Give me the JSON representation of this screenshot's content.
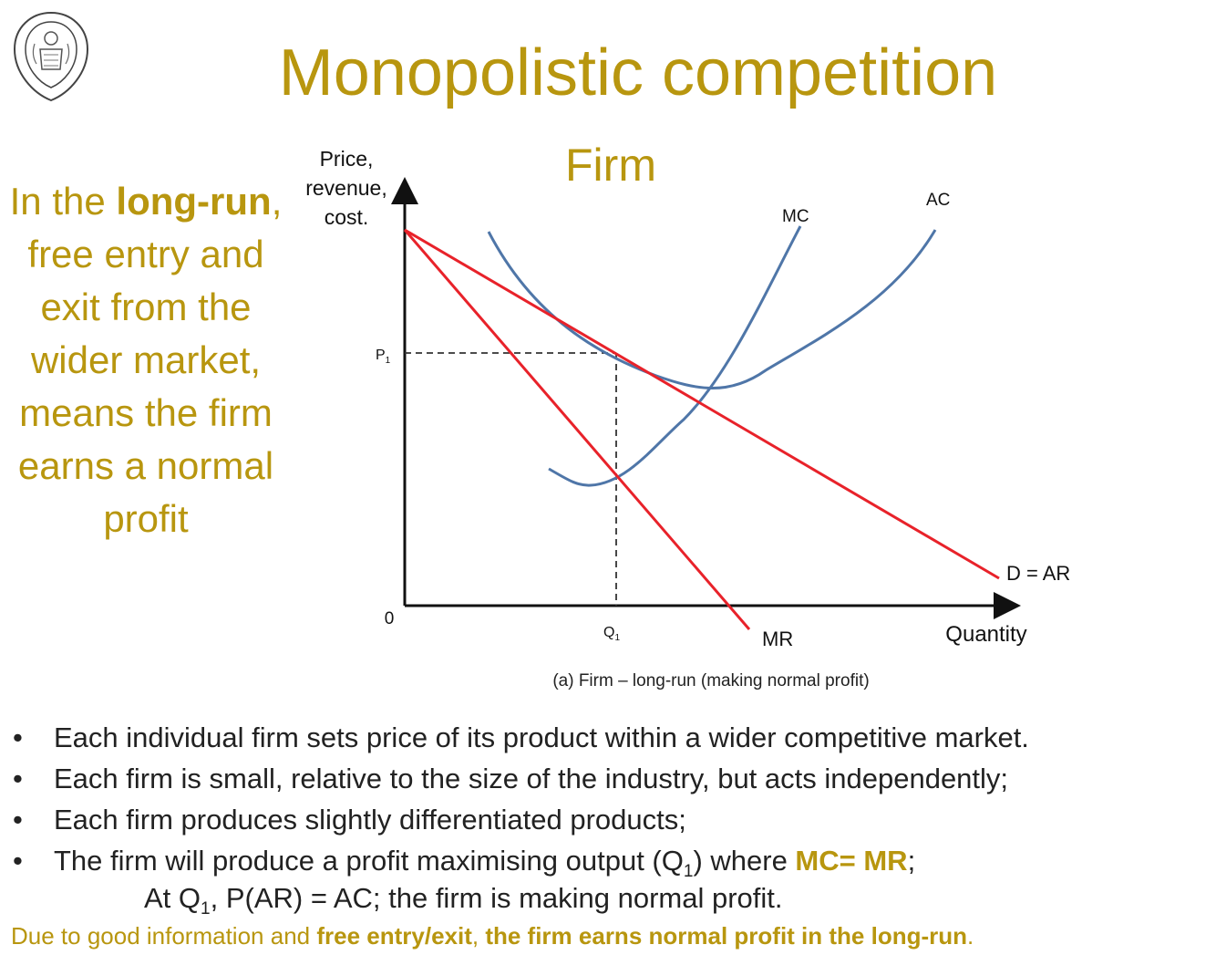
{
  "slide": {
    "title": "Monopolistic competition",
    "subtitle": "Firm",
    "side_text": {
      "p1": "In the ",
      "b1": "long-run",
      "p2": ", free entry and exit from the wider market, means the firm earns a normal profit"
    },
    "bullets": [
      {
        "text": "Each individual firm sets price of its product within a wider competitive market."
      },
      {
        "text": "Each firm is small, relative to the size of the industry, but acts independently;"
      },
      {
        "text": "Each firm produces slightly differentiated products;"
      },
      {
        "pre": "The firm will produce a profit maximising output (Q",
        "sub": "1",
        "mid": ") where ",
        "hl": "MC= MR",
        "post": ";"
      }
    ],
    "indent_line": {
      "pre": "At Q",
      "sub": "1",
      "post": ", P(AR) = AC; the firm is making normal profit."
    },
    "footer": {
      "p1": "Due to good information and ",
      "b1": "free entry/exit",
      "p2": ", ",
      "b2": "the firm earns normal profit in the long-run",
      "p3": "."
    }
  },
  "diagram": {
    "y_axis_label": [
      "Price,",
      "revenue,",
      "cost."
    ],
    "x_axis_label": "Quantity",
    "origin": "0",
    "p1_label": "P",
    "p1_sub": "1",
    "q1_label": "Q",
    "q1_sub": "1",
    "curves": {
      "mc": "MC",
      "ac": "AC",
      "demand": "D = AR",
      "mr": "MR"
    },
    "caption": "(a) Firm – long-run (making normal profit)",
    "colors": {
      "cost_curves": "#4F76A8",
      "revenue_curves": "#E8222A",
      "axes": "#111111",
      "accent": "#B8960F"
    }
  }
}
